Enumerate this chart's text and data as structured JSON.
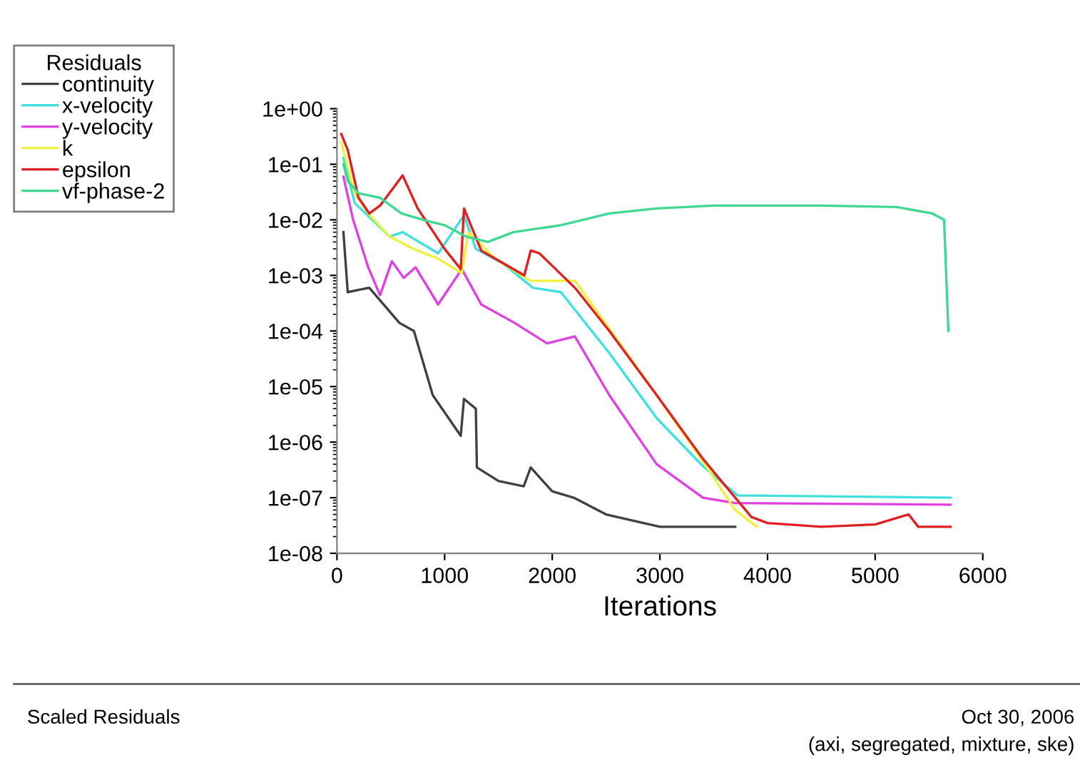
{
  "chart_data": {
    "type": "line",
    "xlabel": "Iterations",
    "legend_title": "Residuals",
    "legend": "top left",
    "log": "y",
    "grid": false,
    "marker": "none",
    "line_style": "solid",
    "xlim": [
      0,
      6000
    ],
    "xticks": [
      0,
      1000,
      2000,
      3000,
      4000,
      5000,
      6000
    ],
    "ylim": [
      1e-08,
      1
    ],
    "yticks": [
      {
        "value": 1e-08,
        "label": "1e-08"
      },
      {
        "value": 1e-07,
        "label": "1e-07"
      },
      {
        "value": 1e-06,
        "label": "1e-06"
      },
      {
        "value": 1e-05,
        "label": "1e-05"
      },
      {
        "value": 0.0001,
        "label": "1e-04"
      },
      {
        "value": 0.001,
        "label": "1e-03"
      },
      {
        "value": 0.01,
        "label": "1e-02"
      },
      {
        "value": 0.1,
        "label": "1e-01"
      },
      {
        "value": 1,
        "label": "1e+00"
      }
    ],
    "annotations": [
      "Scaled Residuals",
      "Oct 30, 2006",
      "(axi, segregated, mixture, ske)"
    ],
    "series": [
      {
        "name": "continuity",
        "color": "#404040",
        "x": [
          60,
          100,
          300,
          580,
          715,
          890,
          1150,
          1180,
          1290,
          1300,
          1500,
          1735,
          1800,
          2000,
          2200,
          2500,
          3000,
          3700
        ],
        "values": [
          0.006,
          0.0005,
          0.0006,
          0.00014,
          0.0001,
          7e-06,
          1.3e-06,
          6e-06,
          4e-06,
          3.5e-07,
          2e-07,
          1.6e-07,
          3.5e-07,
          1.3e-07,
          1e-07,
          5e-08,
          3e-08,
          3e-08
        ]
      },
      {
        "name": "x-velocity",
        "color": "#40e0e0",
        "x": [
          60,
          165,
          490,
          610,
          940,
          1180,
          1290,
          1550,
          1820,
          2080,
          2530,
          2970,
          3400,
          3720,
          5700
        ],
        "values": [
          0.13,
          0.02,
          0.005,
          0.006,
          0.0025,
          0.012,
          0.003,
          0.0016,
          0.0006,
          0.0005,
          4e-05,
          2.7e-06,
          3.7e-07,
          1.1e-07,
          1e-07
        ]
      },
      {
        "name": "y-velocity",
        "color": "#e040e0",
        "x": [
          60,
          150,
          290,
          400,
          510,
          620,
          730,
          940,
          1160,
          1340,
          1650,
          1950,
          2210,
          2530,
          2970,
          3400,
          3700,
          5700
        ],
        "values": [
          0.06,
          0.01,
          0.0014,
          0.00044,
          0.0018,
          0.0009,
          0.0014,
          0.0003,
          0.0013,
          0.0003,
          0.00014,
          6e-05,
          8e-05,
          7e-06,
          4e-07,
          1e-07,
          8e-08,
          7.5e-08
        ]
      },
      {
        "name": "k",
        "color": "#f0f040",
        "x": [
          40,
          165,
          290,
          490,
          710,
          940,
          1160,
          1220,
          1470,
          1800,
          2210,
          2530,
          2970,
          3400,
          3700,
          3900
        ],
        "values": [
          0.25,
          0.03,
          0.013,
          0.005,
          0.003,
          0.002,
          0.0011,
          0.006,
          0.002,
          0.0008,
          0.0008,
          0.00011,
          7e-06,
          4.5e-07,
          6e-08,
          3e-08
        ]
      },
      {
        "name": "epsilon",
        "color": "#e02020",
        "x": [
          40,
          100,
          200,
          300,
          400,
          610,
          750,
          1000,
          1150,
          1180,
          1340,
          1740,
          1800,
          1880,
          2210,
          2530,
          2970,
          3400,
          3700,
          3850,
          4000,
          4500,
          5000,
          5310,
          5400,
          5700
        ],
        "values": [
          0.35,
          0.18,
          0.025,
          0.013,
          0.018,
          0.063,
          0.016,
          0.003,
          0.0013,
          0.016,
          0.0028,
          0.001,
          0.0028,
          0.0025,
          0.0006,
          0.0001,
          7e-06,
          5e-07,
          1e-07,
          4.5e-08,
          3.5e-08,
          3e-08,
          3.3e-08,
          5e-08,
          3e-08,
          3e-08
        ]
      },
      {
        "name": "vf-phase-2",
        "color": "#40d890",
        "x": [
          60,
          100,
          200,
          400,
          600,
          800,
          1000,
          1200,
          1400,
          1640,
          2080,
          2530,
          2970,
          3500,
          4500,
          5200,
          5530,
          5640,
          5680
        ],
        "values": [
          0.1,
          0.05,
          0.03,
          0.025,
          0.013,
          0.01,
          0.008,
          0.005,
          0.004,
          0.006,
          0.008,
          0.013,
          0.016,
          0.018,
          0.018,
          0.017,
          0.013,
          0.01,
          0.0001
        ]
      }
    ]
  }
}
